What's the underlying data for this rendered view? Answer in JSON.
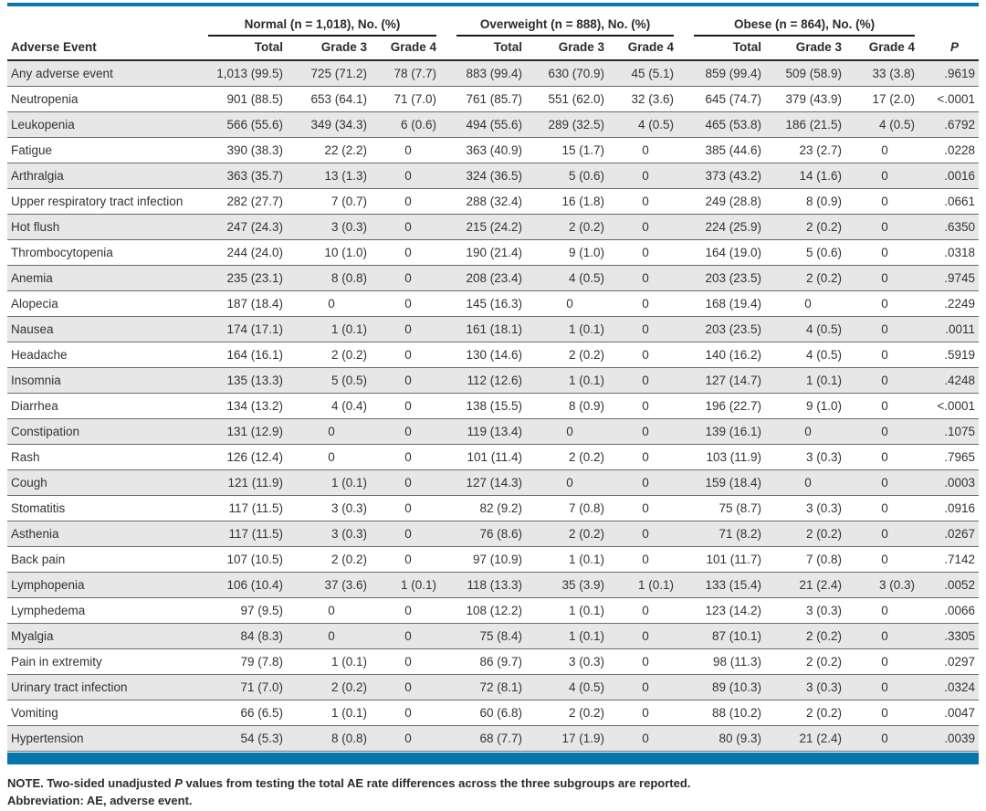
{
  "table": {
    "groups": [
      {
        "label": "Normal (n = 1,018), No. (%)"
      },
      {
        "label": "Overweight (n = 888), No. (%)"
      },
      {
        "label": "Obese (n = 864), No. (%)"
      }
    ],
    "col_headers": {
      "event": "Adverse Event",
      "total": "Total",
      "grade3": "Grade 3",
      "grade4": "Grade 4",
      "p": "P"
    },
    "rows": [
      {
        "event": "Any adverse event",
        "values": [
          "1,013 (99.5)",
          "725 (71.2)",
          "78 (7.7)",
          "883 (99.4)",
          "630 (70.9)",
          "45 (5.1)",
          "859 (99.4)",
          "509 (58.9)",
          "33 (3.8)",
          ".9619"
        ]
      },
      {
        "event": "Neutropenia",
        "values": [
          "901 (88.5)",
          "653 (64.1)",
          "71 (7.0)",
          "761 (85.7)",
          "551 (62.0)",
          "32 (3.6)",
          "645 (74.7)",
          "379 (43.9)",
          "17 (2.0)",
          "<.0001"
        ]
      },
      {
        "event": "Leukopenia",
        "values": [
          "566 (55.6)",
          "349 (34.3)",
          "6 (0.6)",
          "494 (55.6)",
          "289 (32.5)",
          "4 (0.5)",
          "465 (53.8)",
          "186 (21.5)",
          "4 (0.5)",
          ".6792"
        ]
      },
      {
        "event": "Fatigue",
        "values": [
          "390 (38.3)",
          "22 (2.2)",
          "0",
          "363 (40.9)",
          "15 (1.7)",
          "0",
          "385 (44.6)",
          "23 (2.7)",
          "0",
          ".0228"
        ]
      },
      {
        "event": "Arthralgia",
        "values": [
          "363 (35.7)",
          "13 (1.3)",
          "0",
          "324 (36.5)",
          "5 (0.6)",
          "0",
          "373 (43.2)",
          "14 (1.6)",
          "0",
          ".0016"
        ]
      },
      {
        "event": "Upper respiratory tract infection",
        "values": [
          "282 (27.7)",
          "7 (0.7)",
          "0",
          "288 (32.4)",
          "16 (1.8)",
          "0",
          "249 (28.8)",
          "8 (0.9)",
          "0",
          ".0661"
        ]
      },
      {
        "event": "Hot flush",
        "values": [
          "247 (24.3)",
          "3 (0.3)",
          "0",
          "215 (24.2)",
          "2 (0.2)",
          "0",
          "224 (25.9)",
          "2 (0.2)",
          "0",
          ".6350"
        ]
      },
      {
        "event": "Thrombocytopenia",
        "values": [
          "244 (24.0)",
          "10 (1.0)",
          "0",
          "190 (21.4)",
          "9 (1.0)",
          "0",
          "164 (19.0)",
          "5 (0.6)",
          "0",
          ".0318"
        ]
      },
      {
        "event": "Anemia",
        "values": [
          "235 (23.1)",
          "8 (0.8)",
          "0",
          "208 (23.4)",
          "4 (0.5)",
          "0",
          "203 (23.5)",
          "2 (0.2)",
          "0",
          ".9745"
        ]
      },
      {
        "event": "Alopecia",
        "values": [
          "187 (18.4)",
          "0",
          "0",
          "145 (16.3)",
          "0",
          "0",
          "168 (19.4)",
          "0",
          "0",
          ".2249"
        ]
      },
      {
        "event": "Nausea",
        "values": [
          "174 (17.1)",
          "1 (0.1)",
          "0",
          "161 (18.1)",
          "1 (0.1)",
          "0",
          "203 (23.5)",
          "4 (0.5)",
          "0",
          ".0011"
        ]
      },
      {
        "event": "Headache",
        "values": [
          "164 (16.1)",
          "2 (0.2)",
          "0",
          "130 (14.6)",
          "2 (0.2)",
          "0",
          "140 (16.2)",
          "4 (0.5)",
          "0",
          ".5919"
        ]
      },
      {
        "event": "Insomnia",
        "values": [
          "135 (13.3)",
          "5 (0.5)",
          "0",
          "112 (12.6)",
          "1 (0.1)",
          "0",
          "127 (14.7)",
          "1 (0.1)",
          "0",
          ".4248"
        ]
      },
      {
        "event": "Diarrhea",
        "values": [
          "134 (13.2)",
          "4 (0.4)",
          "0",
          "138 (15.5)",
          "8 (0.9)",
          "0",
          "196 (22.7)",
          "9 (1.0)",
          "0",
          "<.0001"
        ]
      },
      {
        "event": "Constipation",
        "values": [
          "131 (12.9)",
          "0",
          "0",
          "119 (13.4)",
          "0",
          "0",
          "139 (16.1)",
          "0",
          "0",
          ".1075"
        ]
      },
      {
        "event": "Rash",
        "values": [
          "126 (12.4)",
          "0",
          "0",
          "101 (11.4)",
          "2 (0.2)",
          "0",
          "103 (11.9)",
          "3 (0.3)",
          "0",
          ".7965"
        ]
      },
      {
        "event": "Cough",
        "values": [
          "121 (11.9)",
          "1 (0.1)",
          "0",
          "127 (14.3)",
          "0",
          "0",
          "159 (18.4)",
          "0",
          "0",
          ".0003"
        ]
      },
      {
        "event": "Stomatitis",
        "values": [
          "117 (11.5)",
          "3 (0.3)",
          "0",
          "82 (9.2)",
          "7 (0.8)",
          "0",
          "75 (8.7)",
          "3 (0.3)",
          "0",
          ".0916"
        ]
      },
      {
        "event": "Asthenia",
        "values": [
          "117 (11.5)",
          "3 (0.3)",
          "0",
          "76 (8.6)",
          "2 (0.2)",
          "0",
          "71 (8.2)",
          "2 (0.2)",
          "0",
          ".0267"
        ]
      },
      {
        "event": "Back pain",
        "values": [
          "107 (10.5)",
          "2 (0.2)",
          "0",
          "97 (10.9)",
          "1 (0.1)",
          "0",
          "101 (11.7)",
          "7 (0.8)",
          "0",
          ".7142"
        ]
      },
      {
        "event": "Lymphopenia",
        "values": [
          "106 (10.4)",
          "37 (3.6)",
          "1 (0.1)",
          "118 (13.3)",
          "35 (3.9)",
          "1 (0.1)",
          "133 (15.4)",
          "21 (2.4)",
          "3 (0.3)",
          ".0052"
        ]
      },
      {
        "event": "Lymphedema",
        "values": [
          "97 (9.5)",
          "0",
          "0",
          "108 (12.2)",
          "1 (0.1)",
          "0",
          "123 (14.2)",
          "3 (0.3)",
          "0",
          ".0066"
        ]
      },
      {
        "event": "Myalgia",
        "values": [
          "84 (8.3)",
          "0",
          "0",
          "75 (8.4)",
          "1 (0.1)",
          "0",
          "87 (10.1)",
          "2 (0.2)",
          "0",
          ".3305"
        ]
      },
      {
        "event": "Pain in extremity",
        "values": [
          "79 (7.8)",
          "1 (0.1)",
          "0",
          "86 (9.7)",
          "3 (0.3)",
          "0",
          "98 (11.3)",
          "2 (0.2)",
          "0",
          ".0297"
        ]
      },
      {
        "event": "Urinary tract infection",
        "values": [
          "71 (7.0)",
          "2 (0.2)",
          "0",
          "72 (8.1)",
          "4 (0.5)",
          "0",
          "89 (10.3)",
          "3 (0.3)",
          "0",
          ".0324"
        ]
      },
      {
        "event": "Vomiting",
        "values": [
          "66 (6.5)",
          "1 (0.1)",
          "0",
          "60 (6.8)",
          "2 (0.2)",
          "0",
          "88 (10.2)",
          "2 (0.2)",
          "0",
          ".0047"
        ]
      },
      {
        "event": "Hypertension",
        "values": [
          "54 (5.3)",
          "8 (0.8)",
          "0",
          "68 (7.7)",
          "17 (1.9)",
          "0",
          "80 (9.3)",
          "21 (2.4)",
          "0",
          ".0039"
        ]
      }
    ]
  },
  "footer": {
    "note_before": "NOTE. Two-sided unadjusted ",
    "note_p": "P",
    "note_after": " values from testing the total AE rate differences across the three subgroups are reported.",
    "abbreviation": "Abbreviation: AE, adverse event."
  },
  "colors": {
    "accent_blue": "#0677ad",
    "row_stripe": "#e7e7e7"
  }
}
